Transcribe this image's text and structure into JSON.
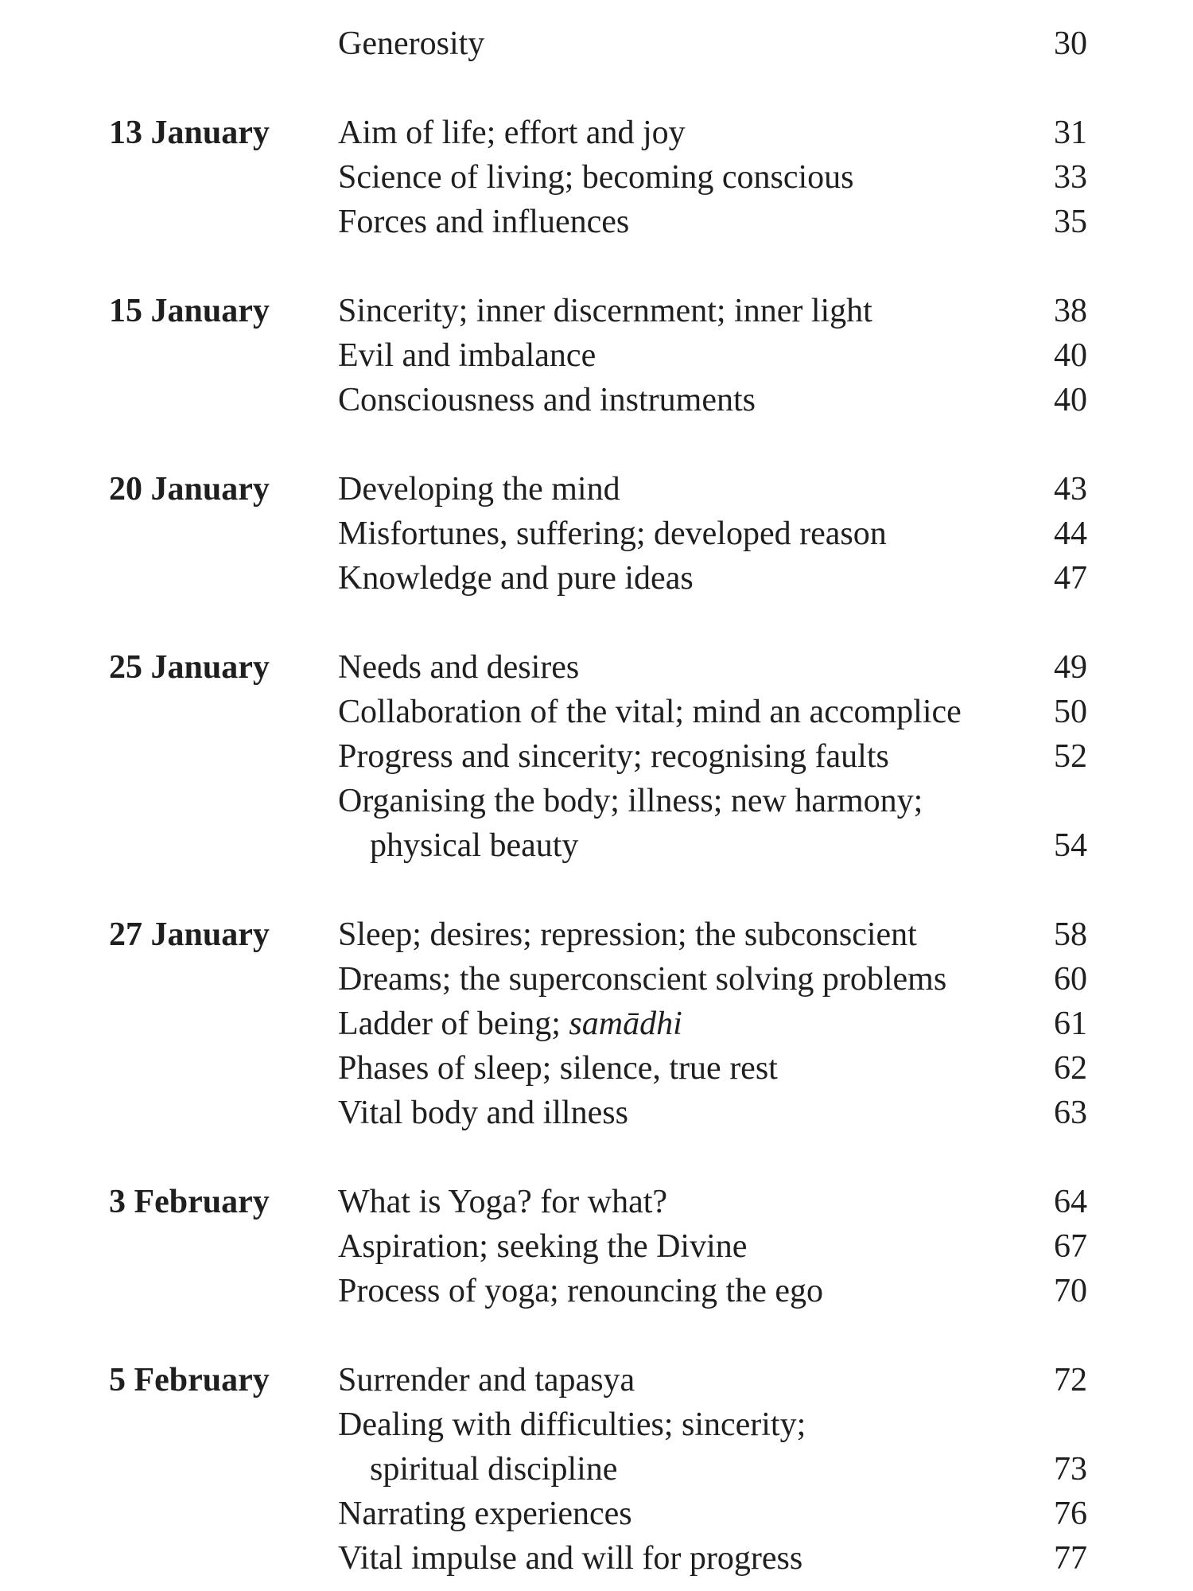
{
  "page": {
    "colors": {
      "background": "#ffffff",
      "text": "#1f1f1f"
    }
  },
  "toc": {
    "sections": [
      {
        "date": "",
        "rows": [
          {
            "segments": [
              {
                "text": "Generosity"
              }
            ],
            "page": "30",
            "indent": false
          }
        ]
      },
      {
        "date": "13 January",
        "rows": [
          {
            "segments": [
              {
                "text": "Aim of life; effort and joy"
              }
            ],
            "page": "31",
            "indent": false
          },
          {
            "segments": [
              {
                "text": "Science of living; becoming conscious"
              }
            ],
            "page": "33",
            "indent": false
          },
          {
            "segments": [
              {
                "text": "Forces and influences"
              }
            ],
            "page": "35",
            "indent": false
          }
        ]
      },
      {
        "date": "15 January",
        "rows": [
          {
            "segments": [
              {
                "text": "Sincerity; inner discernment; inner light"
              }
            ],
            "page": "38",
            "indent": false
          },
          {
            "segments": [
              {
                "text": "Evil and imbalance"
              }
            ],
            "page": "40",
            "indent": false
          },
          {
            "segments": [
              {
                "text": "Consciousness and instruments"
              }
            ],
            "page": "40",
            "indent": false
          }
        ]
      },
      {
        "date": "20 January",
        "rows": [
          {
            "segments": [
              {
                "text": "Developing the mind"
              }
            ],
            "page": "43",
            "indent": false
          },
          {
            "segments": [
              {
                "text": "Misfortunes, suffering; developed reason"
              }
            ],
            "page": "44",
            "indent": false
          },
          {
            "segments": [
              {
                "text": "Knowledge and pure ideas"
              }
            ],
            "page": "47",
            "indent": false
          }
        ]
      },
      {
        "date": "25 January",
        "rows": [
          {
            "segments": [
              {
                "text": "Needs and desires"
              }
            ],
            "page": "49",
            "indent": false
          },
          {
            "segments": [
              {
                "text": "Collaboration of the vital; mind an accomplice"
              }
            ],
            "page": "50",
            "indent": false
          },
          {
            "segments": [
              {
                "text": "Progress and sincerity; recognising faults"
              }
            ],
            "page": "52",
            "indent": false
          },
          {
            "segments": [
              {
                "text": "Organising the body; illness; new harmony;"
              }
            ],
            "page": "",
            "indent": false
          },
          {
            "segments": [
              {
                "text": "physical beauty"
              }
            ],
            "page": "54",
            "indent": true
          }
        ]
      },
      {
        "date": "27 January",
        "rows": [
          {
            "segments": [
              {
                "text": "Sleep; desires; repression; the subconscient"
              }
            ],
            "page": "58",
            "indent": false
          },
          {
            "segments": [
              {
                "text": "Dreams; the superconscient solving problems"
              }
            ],
            "page": "60",
            "indent": false
          },
          {
            "segments": [
              {
                "text": "Ladder of being; "
              },
              {
                "text": "samādhi",
                "italic": true
              }
            ],
            "page": "61",
            "indent": false
          },
          {
            "segments": [
              {
                "text": "Phases of sleep; silence, true rest"
              }
            ],
            "page": "62",
            "indent": false
          },
          {
            "segments": [
              {
                "text": "Vital body and illness"
              }
            ],
            "page": "63",
            "indent": false
          }
        ]
      },
      {
        "date": "3 February",
        "rows": [
          {
            "segments": [
              {
                "text": "What is Yoga? for what?"
              }
            ],
            "page": "64",
            "indent": false
          },
          {
            "segments": [
              {
                "text": "Aspiration; seeking the Divine"
              }
            ],
            "page": "67",
            "indent": false
          },
          {
            "segments": [
              {
                "text": "Process of yoga; renouncing the ego"
              }
            ],
            "page": "70",
            "indent": false
          }
        ]
      },
      {
        "date": "5 February",
        "rows": [
          {
            "segments": [
              {
                "text": "Surrender and tapasya"
              }
            ],
            "page": "72",
            "indent": false
          },
          {
            "segments": [
              {
                "text": "Dealing with difficulties; sincerity;"
              }
            ],
            "page": "",
            "indent": false
          },
          {
            "segments": [
              {
                "text": "spiritual discipline"
              }
            ],
            "page": "73",
            "indent": true
          },
          {
            "segments": [
              {
                "text": "Narrating experiences"
              }
            ],
            "page": "76",
            "indent": false
          },
          {
            "segments": [
              {
                "text": "Vital impulse and will for progress"
              }
            ],
            "page": "77",
            "indent": false
          }
        ]
      }
    ]
  }
}
